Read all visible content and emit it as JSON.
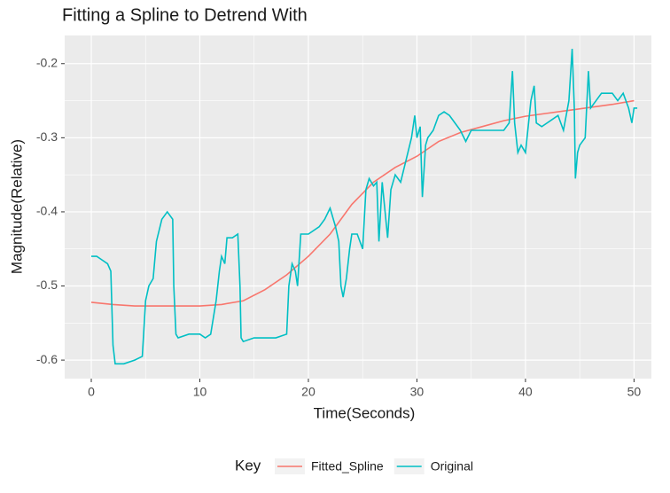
{
  "chart_data": {
    "type": "line",
    "title": "Fitting a Spline to Detrend With",
    "x_label": "Time(Seconds)",
    "y_label": "Magnitude(Relative)",
    "legend_title": "Key",
    "legend_position": "bottom",
    "grid": true,
    "xlim": [
      -2.45,
      51.6
    ],
    "ylim": [
      -0.625,
      -0.162
    ],
    "xticks": [
      0,
      10,
      20,
      30,
      40,
      50
    ],
    "yticks": [
      -0.6,
      -0.5,
      -0.4,
      -0.3,
      -0.2
    ],
    "series": [
      {
        "name": "Fitted_Spline",
        "color": "#F8766D",
        "x": [
          0,
          2,
          4,
          6,
          8,
          10,
          12,
          14,
          16,
          18,
          20,
          22,
          24,
          26,
          28,
          30,
          32,
          34,
          36,
          38,
          40,
          42,
          44,
          46,
          48,
          50
        ],
        "values": [
          -0.522,
          -0.525,
          -0.527,
          -0.527,
          -0.527,
          -0.527,
          -0.525,
          -0.52,
          -0.505,
          -0.485,
          -0.46,
          -0.43,
          -0.39,
          -0.36,
          -0.34,
          -0.325,
          -0.305,
          -0.293,
          -0.285,
          -0.277,
          -0.271,
          -0.267,
          -0.263,
          -0.259,
          -0.255,
          -0.25
        ]
      },
      {
        "name": "Original",
        "color": "#00BFC4",
        "x": [
          0,
          0.5,
          1,
          1.5,
          1.8,
          2,
          2.2,
          3,
          4,
          4.7,
          5,
          5.3,
          5.7,
          6,
          6.5,
          7,
          7.5,
          7.6,
          7.8,
          8,
          9,
          10,
          10.5,
          11,
          11.5,
          11.8,
          12,
          12.3,
          12.5,
          13,
          13.5,
          13.7,
          13.8,
          14,
          15,
          16,
          17,
          18,
          18.2,
          18.5,
          18.8,
          19,
          19.3,
          20,
          21,
          21.5,
          22,
          22.5,
          22.8,
          23,
          23.2,
          23.5,
          23.8,
          24,
          24.5,
          25,
          25.3,
          25.6,
          26,
          26.3,
          26.5,
          26.8,
          27,
          27.3,
          27.6,
          28,
          28.5,
          29,
          29.5,
          29.8,
          30,
          30.3,
          30.5,
          30.8,
          31,
          31.5,
          32,
          32.5,
          33,
          33.5,
          34,
          34.5,
          35,
          36,
          37,
          38,
          38.5,
          38.8,
          39,
          39.3,
          39.6,
          40,
          40.5,
          40.8,
          41,
          41.5,
          42,
          42.5,
          43,
          43.5,
          44,
          44.3,
          44.5,
          44.6,
          44.8,
          45,
          45.5,
          45.8,
          46,
          46.5,
          47,
          48,
          48.5,
          49,
          49.5,
          49.8,
          50,
          50.3
        ],
        "values": [
          -0.46,
          -0.46,
          -0.465,
          -0.47,
          -0.48,
          -0.58,
          -0.605,
          -0.605,
          -0.6,
          -0.595,
          -0.52,
          -0.5,
          -0.49,
          -0.44,
          -0.41,
          -0.4,
          -0.41,
          -0.5,
          -0.565,
          -0.57,
          -0.565,
          -0.565,
          -0.57,
          -0.565,
          -0.52,
          -0.48,
          -0.46,
          -0.47,
          -0.435,
          -0.435,
          -0.43,
          -0.5,
          -0.57,
          -0.575,
          -0.57,
          -0.57,
          -0.57,
          -0.565,
          -0.5,
          -0.47,
          -0.48,
          -0.5,
          -0.43,
          -0.43,
          -0.42,
          -0.41,
          -0.395,
          -0.42,
          -0.44,
          -0.5,
          -0.515,
          -0.49,
          -0.45,
          -0.43,
          -0.43,
          -0.45,
          -0.37,
          -0.355,
          -0.365,
          -0.36,
          -0.44,
          -0.36,
          -0.39,
          -0.435,
          -0.37,
          -0.35,
          -0.36,
          -0.33,
          -0.3,
          -0.27,
          -0.3,
          -0.285,
          -0.38,
          -0.31,
          -0.3,
          -0.29,
          -0.27,
          -0.265,
          -0.27,
          -0.28,
          -0.29,
          -0.305,
          -0.29,
          -0.29,
          -0.29,
          -0.29,
          -0.28,
          -0.21,
          -0.28,
          -0.32,
          -0.31,
          -0.32,
          -0.25,
          -0.23,
          -0.28,
          -0.285,
          -0.28,
          -0.275,
          -0.27,
          -0.29,
          -0.25,
          -0.18,
          -0.26,
          -0.355,
          -0.32,
          -0.31,
          -0.3,
          -0.21,
          -0.26,
          -0.25,
          -0.24,
          -0.24,
          -0.25,
          -0.24,
          -0.26,
          -0.28,
          -0.26,
          -0.26
        ]
      }
    ]
  }
}
